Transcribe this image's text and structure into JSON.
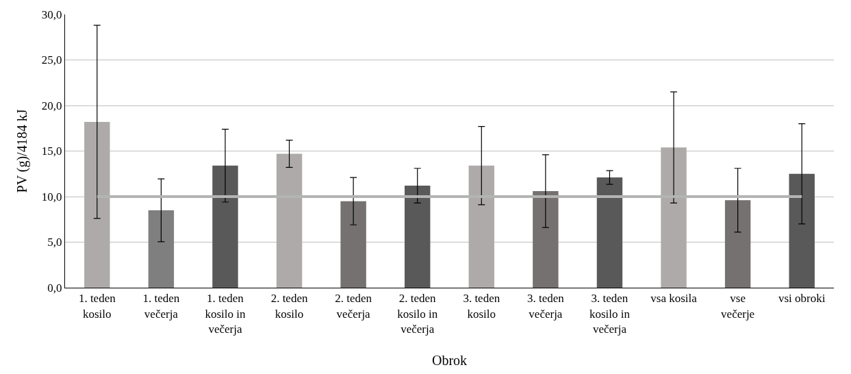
{
  "chart_data": {
    "type": "bar",
    "xlabel": "Obrok",
    "ylabel": "PV (g)/4184 kJ",
    "categories": [
      "1. teden kosilo",
      "1. teden večerja",
      "1. teden kosilo in večerja",
      "2. teden kosilo",
      "2. teden večerja",
      "2. teden kosilo in večerja",
      "3. teden kosilo",
      "3. teden večerja",
      "3. teden kosilo in večerja",
      "vsa kosila",
      "vse večerje",
      "vsi obroki"
    ],
    "values": [
      18.2,
      8.5,
      13.4,
      14.7,
      9.5,
      11.2,
      13.4,
      10.6,
      12.1,
      15.4,
      9.6,
      12.5
    ],
    "errors": [
      10.6,
      3.45,
      4.0,
      1.5,
      2.6,
      1.9,
      4.3,
      4.0,
      0.75,
      6.1,
      3.5,
      5.5
    ],
    "colors": [
      "#aeaaaa",
      "#7f7f7f",
      "#595959",
      "#aeaaaa",
      "#767171",
      "#595959",
      "#aeaaaa",
      "#767171",
      "#595959",
      "#aeaaaa",
      "#767171",
      "#595959"
    ],
    "ylim": [
      0,
      30
    ],
    "yticks": [
      {
        "value": 0,
        "label": "0,0"
      },
      {
        "value": 5,
        "label": "5,0"
      },
      {
        "value": 10,
        "label": "10,0"
      },
      {
        "value": 15,
        "label": "15,0"
      },
      {
        "value": 20,
        "label": "20,0"
      },
      {
        "value": 25,
        "label": "25,0"
      },
      {
        "value": 30,
        "label": "30,0"
      }
    ],
    "ref_lines": [
      {
        "axis": "y",
        "value": 10,
        "label": null,
        "color": "#b4b4b4"
      }
    ],
    "grid": "y"
  }
}
